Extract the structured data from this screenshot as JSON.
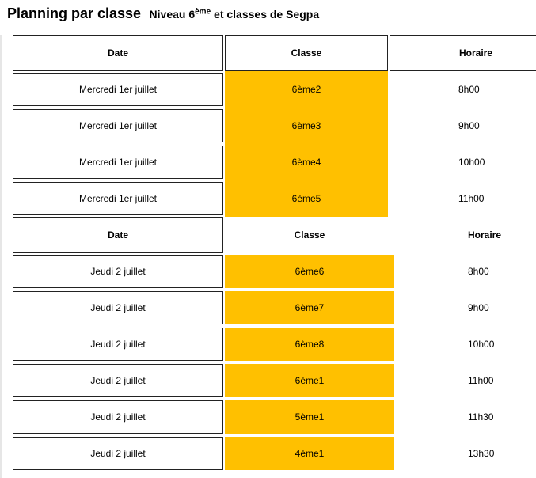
{
  "heading": {
    "title": "Planning par classe",
    "sub_prefix": "Niveau 6",
    "sub_sup": "ème",
    "sub_suffix": " et classes de Segpa"
  },
  "header_labels": {
    "date": "Date",
    "classe": "Classe",
    "horaire": "Horaire"
  },
  "block1": [
    {
      "date": "Mercredi 1er juillet",
      "classe": "6ème2",
      "horaire": "8h00"
    },
    {
      "date": "Mercredi 1er juillet",
      "classe": "6ème3",
      "horaire": "9h00"
    },
    {
      "date": "Mercredi 1er juillet",
      "classe": "6ème4",
      "horaire": "10h00"
    },
    {
      "date": "Mercredi 1er juillet",
      "classe": "6ème5",
      "horaire": "11h00"
    }
  ],
  "block2": [
    {
      "date": "Jeudi 2 juillet",
      "classe": "6ème6",
      "horaire": "8h00"
    },
    {
      "date": "Jeudi 2 juillet",
      "classe": "6ème7",
      "horaire": "9h00"
    },
    {
      "date": "Jeudi 2 juillet",
      "classe": "6ème8",
      "horaire": "10h00"
    },
    {
      "date": "Jeudi 2 juillet",
      "classe": "6ème1",
      "horaire": "11h00"
    },
    {
      "date": "Jeudi 2 juillet",
      "classe": "5ème1",
      "horaire": "11h30"
    },
    {
      "date": "Jeudi 2 juillet",
      "classe": "4ème1",
      "horaire": "13h30"
    }
  ],
  "colors": {
    "highlight": "#ffc000",
    "border": "#222222"
  }
}
